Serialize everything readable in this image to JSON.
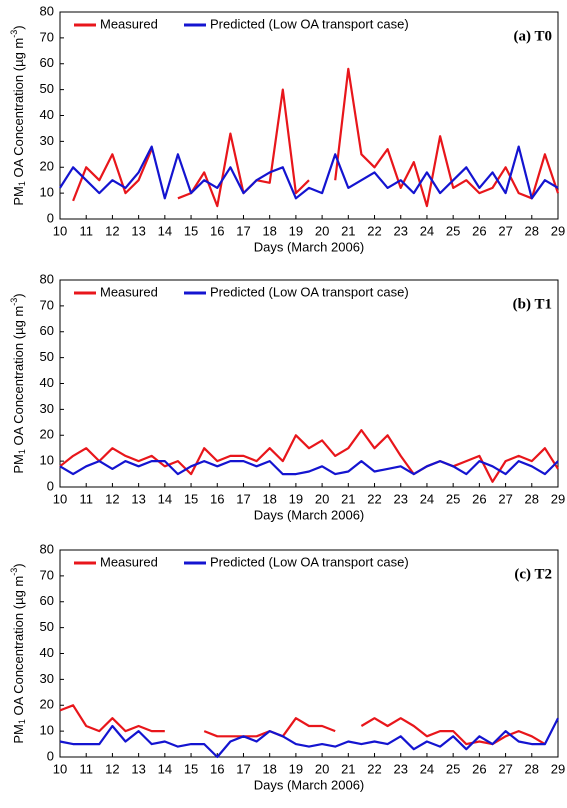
{
  "chart_data": [
    {
      "type": "line",
      "panel_label": "(a) T0",
      "x_label": "Days (March 2006)",
      "y_label": [
        "PM",
        "1",
        " OA Concentration (µg m",
        "-3",
        ")"
      ],
      "xlim": [
        10,
        29
      ],
      "xticks": [
        10,
        11,
        12,
        13,
        14,
        15,
        16,
        17,
        18,
        19,
        20,
        21,
        22,
        23,
        24,
        25,
        26,
        27,
        28,
        29
      ],
      "ylim": [
        0,
        80
      ],
      "yticks": [
        0,
        10,
        20,
        30,
        40,
        50,
        60,
        70,
        80
      ],
      "x": [
        10,
        10.5,
        11,
        11.5,
        12,
        12.5,
        13,
        13.5,
        14,
        14.5,
        15,
        15.5,
        16,
        16.5,
        17,
        17.5,
        18,
        18.5,
        19,
        19.5,
        20,
        20.5,
        21,
        21.5,
        22,
        22.5,
        23,
        23.5,
        24,
        24.5,
        25,
        25.5,
        26,
        26.5,
        27,
        27.5,
        28,
        28.5,
        29
      ],
      "series": [
        {
          "name": "Measured",
          "color": "#e8161b",
          "values": [
            null,
            7,
            20,
            15,
            25,
            10,
            15,
            27,
            null,
            8,
            10,
            18,
            5,
            33,
            10,
            15,
            14,
            50,
            10,
            15,
            null,
            15,
            58,
            25,
            20,
            27,
            12,
            22,
            5,
            32,
            12,
            15,
            10,
            12,
            20,
            10,
            8,
            25,
            10
          ]
        },
        {
          "name": "Predicted (Low OA transport case)",
          "color": "#1414d0",
          "values": [
            12,
            20,
            15,
            10,
            15,
            12,
            18,
            28,
            8,
            25,
            10,
            15,
            12,
            20,
            10,
            15,
            18,
            20,
            8,
            12,
            10,
            25,
            12,
            15,
            18,
            12,
            15,
            10,
            18,
            10,
            15,
            20,
            12,
            18,
            10,
            28,
            8,
            15,
            12
          ]
        }
      ]
    },
    {
      "type": "line",
      "panel_label": "(b) T1",
      "x_label": "Days (March 2006)",
      "y_label": [
        "PM",
        "1",
        " OA Concentration (µg m",
        "-3",
        ")"
      ],
      "xlim": [
        10,
        29
      ],
      "xticks": [
        10,
        11,
        12,
        13,
        14,
        15,
        16,
        17,
        18,
        19,
        20,
        21,
        22,
        23,
        24,
        25,
        26,
        27,
        28,
        29
      ],
      "ylim": [
        0,
        80
      ],
      "yticks": [
        0,
        10,
        20,
        30,
        40,
        50,
        60,
        70,
        80
      ],
      "x": [
        10,
        10.5,
        11,
        11.5,
        12,
        12.5,
        13,
        13.5,
        14,
        14.5,
        15,
        15.5,
        16,
        16.5,
        17,
        17.5,
        18,
        18.5,
        19,
        19.5,
        20,
        20.5,
        21,
        21.5,
        22,
        22.5,
        23,
        23.5,
        24,
        24.5,
        25,
        25.5,
        26,
        26.5,
        27,
        27.5,
        28,
        28.5,
        29
      ],
      "series": [
        {
          "name": "Measured",
          "color": "#e8161b",
          "values": [
            8,
            12,
            15,
            10,
            15,
            12,
            10,
            12,
            8,
            10,
            5,
            15,
            10,
            12,
            12,
            10,
            15,
            10,
            20,
            15,
            18,
            12,
            15,
            22,
            15,
            20,
            12,
            5,
            8,
            10,
            8,
            10,
            12,
            2,
            10,
            12,
            10,
            15,
            7
          ]
        },
        {
          "name": "Predicted (Low OA transport case)",
          "color": "#1414d0",
          "values": [
            8,
            5,
            8,
            10,
            7,
            10,
            8,
            10,
            10,
            5,
            8,
            10,
            8,
            10,
            10,
            8,
            10,
            5,
            5,
            6,
            8,
            5,
            6,
            10,
            6,
            7,
            8,
            5,
            8,
            10,
            8,
            5,
            10,
            8,
            5,
            10,
            8,
            5,
            10
          ]
        }
      ]
    },
    {
      "type": "line",
      "panel_label": "(c) T2",
      "x_label": "Days (March 2006)",
      "y_label": [
        "PM",
        "1",
        " OA Concentration (µg m",
        "-3",
        ")"
      ],
      "xlim": [
        10,
        29
      ],
      "xticks": [
        10,
        11,
        12,
        13,
        14,
        15,
        16,
        17,
        18,
        19,
        20,
        21,
        22,
        23,
        24,
        25,
        26,
        27,
        28,
        29
      ],
      "ylim": [
        0,
        80
      ],
      "yticks": [
        0,
        10,
        20,
        30,
        40,
        50,
        60,
        70,
        80
      ],
      "x": [
        10,
        10.5,
        11,
        11.5,
        12,
        12.5,
        13,
        13.5,
        14,
        14.5,
        15,
        15.5,
        16,
        16.5,
        17,
        17.5,
        18,
        18.5,
        19,
        19.5,
        20,
        20.5,
        21,
        21.5,
        22,
        22.5,
        23,
        23.5,
        24,
        24.5,
        25,
        25.5,
        26,
        26.5,
        27,
        27.5,
        28,
        28.5,
        29
      ],
      "series": [
        {
          "name": "Measured",
          "color": "#e8161b",
          "values": [
            18,
            20,
            12,
            10,
            15,
            10,
            12,
            10,
            10,
            null,
            null,
            10,
            8,
            8,
            8,
            8,
            10,
            8,
            15,
            12,
            12,
            10,
            null,
            12,
            15,
            12,
            15,
            12,
            8,
            10,
            10,
            5,
            6,
            5,
            8,
            10,
            8,
            5,
            null
          ]
        },
        {
          "name": "Predicted (Low OA transport case)",
          "color": "#1414d0",
          "values": [
            6,
            5,
            5,
            5,
            12,
            6,
            10,
            5,
            6,
            4,
            5,
            5,
            0,
            6,
            8,
            6,
            10,
            8,
            5,
            4,
            5,
            4,
            6,
            5,
            6,
            5,
            8,
            3,
            6,
            4,
            8,
            3,
            8,
            5,
            10,
            6,
            5,
            5,
            15
          ]
        }
      ]
    }
  ]
}
